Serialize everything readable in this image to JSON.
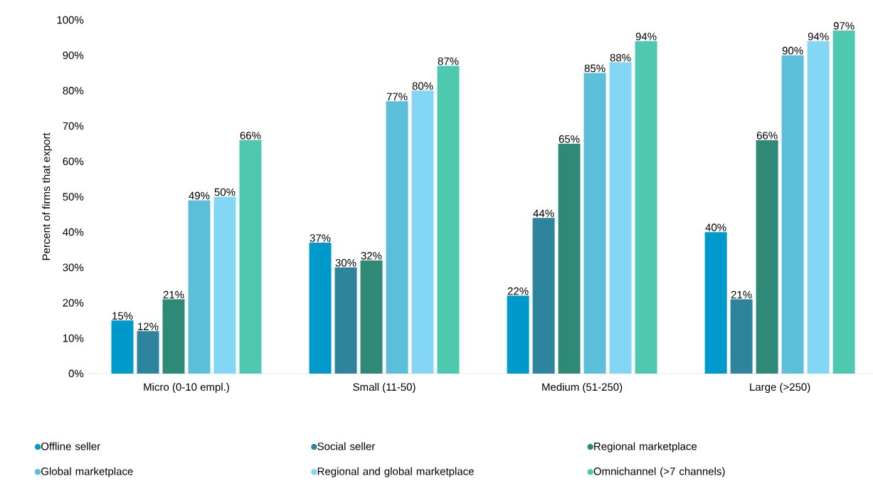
{
  "chart_data": {
    "type": "bar",
    "ylabel": "Percent of firms that export",
    "categories": [
      "Micro (0-10 empl.)",
      "Small (11-50)",
      "Medium (51-250)",
      "Large (>250)"
    ],
    "series": [
      {
        "name": "Offline seller",
        "color": "#0099cc",
        "values": [
          15,
          37,
          22,
          40
        ],
        "value_labels": [
          "15%",
          "37%",
          "22%",
          "40%"
        ]
      },
      {
        "name": "Social seller",
        "color": "#2e849c",
        "values": [
          12,
          30,
          44,
          21
        ],
        "value_labels": [
          "12%",
          "30%",
          "44%",
          "21%"
        ]
      },
      {
        "name": "Regional marketplace",
        "color": "#2e8a76",
        "values": [
          21,
          32,
          65,
          66
        ],
        "value_labels": [
          "21%",
          "32%",
          "65%",
          "66%"
        ]
      },
      {
        "name": "Global marketplace",
        "color": "#5bbfda",
        "values": [
          49,
          77,
          85,
          90
        ],
        "value_labels": [
          "49%",
          "77%",
          "85%",
          "90%"
        ]
      },
      {
        "name": "Regional and global marketplace",
        "color": "#84d6f5",
        "values": [
          50,
          80,
          88,
          94
        ],
        "value_labels": [
          "50%",
          "80%",
          "88%",
          "94%"
        ]
      },
      {
        "name": "Omnichannel (>7 channels)",
        "color": "#4ec9b0",
        "values": [
          66,
          87,
          94,
          97
        ],
        "value_labels": [
          "66%",
          "87%",
          "94%",
          "97%"
        ]
      }
    ],
    "ylim": [
      0,
      100
    ],
    "yticks": [
      {
        "value": 0,
        "label": "0%"
      },
      {
        "value": 10,
        "label": "10%"
      },
      {
        "value": 20,
        "label": "20%"
      },
      {
        "value": 30,
        "label": "30%"
      },
      {
        "value": 40,
        "label": "40%"
      },
      {
        "value": 50,
        "label": "50%"
      },
      {
        "value": 60,
        "label": "60%"
      },
      {
        "value": 70,
        "label": "70%"
      },
      {
        "value": 80,
        "label": "80%"
      },
      {
        "value": 90,
        "label": "90%"
      },
      {
        "value": 100,
        "label": "100%"
      }
    ],
    "legend": "bottom"
  }
}
